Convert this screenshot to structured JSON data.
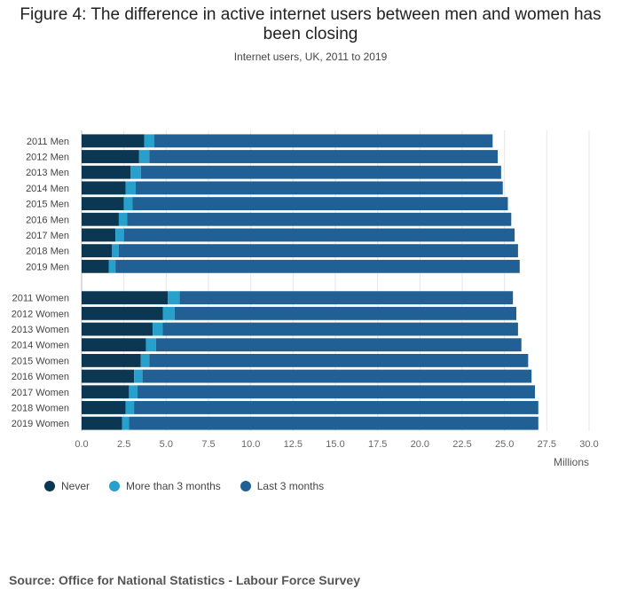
{
  "header": {
    "title": "Figure 4: The difference in active internet users between men and women has been closing",
    "subtitle": "Internet users, UK, 2011 to 2019"
  },
  "source": "Source: Office for National Statistics - Labour Force Survey",
  "chart_data": {
    "type": "bar",
    "orientation": "horizontal",
    "stacked": true,
    "categories": [
      "2011 Men",
      "2012 Men",
      "2013 Men",
      "2014 Men",
      "2015 Men",
      "2016 Men",
      "2017 Men",
      "2018 Men",
      "2019 Men",
      "",
      "2011 Women",
      "2012 Women",
      "2013 Women",
      "2014 Women",
      "2015 Women",
      "2016 Women",
      "2017 Women",
      "2018 Women",
      "2019 Women"
    ],
    "series": [
      {
        "name": "Never",
        "color": "#0b3752",
        "values": [
          3.7,
          3.4,
          2.9,
          2.6,
          2.5,
          2.2,
          2.0,
          1.8,
          1.6,
          null,
          5.1,
          4.8,
          4.2,
          3.8,
          3.5,
          3.1,
          2.8,
          2.6,
          2.4
        ]
      },
      {
        "name": "More than 3 months",
        "color": "#27a0cc",
        "values": [
          0.6,
          0.6,
          0.6,
          0.6,
          0.5,
          0.5,
          0.5,
          0.4,
          0.4,
          null,
          0.7,
          0.7,
          0.6,
          0.6,
          0.5,
          0.5,
          0.5,
          0.5,
          0.4
        ]
      },
      {
        "name": "Last 3 months",
        "color": "#206095",
        "values": [
          20.0,
          20.6,
          21.3,
          21.7,
          22.2,
          22.7,
          23.1,
          23.6,
          23.9,
          null,
          19.7,
          20.2,
          21.0,
          21.6,
          22.4,
          23.0,
          23.5,
          23.9,
          24.2
        ]
      }
    ],
    "xlim": [
      0,
      30
    ],
    "xticks": [
      "0.0",
      "2.5",
      "5.0",
      "7.5",
      "10.0",
      "12.5",
      "15.0",
      "17.5",
      "20.0",
      "22.5",
      "25.0",
      "27.5",
      "30.0"
    ],
    "xtick_values": [
      0,
      2.5,
      5,
      7.5,
      10,
      12.5,
      15,
      17.5,
      20,
      22.5,
      25,
      27.5,
      30
    ],
    "xlabel": "Millions",
    "grid": true,
    "legend_position": "bottom-left"
  }
}
